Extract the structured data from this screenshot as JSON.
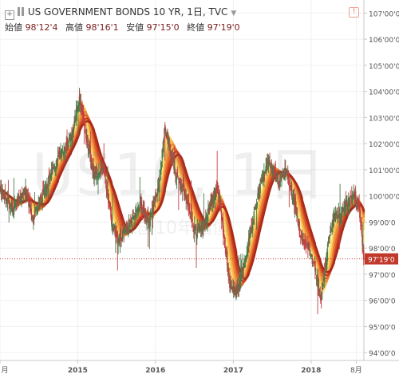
{
  "header": {
    "title": "US GOVERNMENT BONDS 10 YR, 1日, TVC",
    "ohlc": [
      {
        "label": "始値",
        "value": "98'12'4"
      },
      {
        "label": "高値",
        "value": "98'16'1"
      },
      {
        "label": "安値",
        "value": "97'15'0"
      },
      {
        "label": "終値",
        "value": "97'19'0"
      }
    ]
  },
  "watermark": {
    "main": "US10, 1日",
    "sub": "米国10年国債"
  },
  "colors": {
    "up": "#4a7a4a",
    "down": "#c04040",
    "price_line": "#c0392b",
    "ma_colors": [
      "#fff2a0",
      "#ffd966",
      "#f6b24a",
      "#ec8a3a",
      "#e0652c",
      "#cc3b22",
      "#a82a1a"
    ]
  },
  "chart_data": {
    "type": "line",
    "y_ticks": [
      "94'00'0",
      "95'00'0",
      "96'00'0",
      "97'00'0",
      "98'00'0",
      "99'00'0",
      "100'00'0",
      "101'00'0",
      "102'00'0",
      "103'00'0",
      "104'00'0",
      "105'00'0",
      "106'00'0",
      "107'00'0"
    ],
    "y_tick_values": [
      94,
      95,
      96,
      97,
      98,
      99,
      100,
      101,
      102,
      103,
      104,
      105,
      106,
      107
    ],
    "x_ticks": [
      "月",
      "2015",
      "2016",
      "2017",
      "2018",
      "8月"
    ],
    "x_tick_dates": [
      "2014-01-01",
      "2015-01-01",
      "2016-01-01",
      "2017-01-01",
      "2018-01-01",
      "2018-08-01"
    ],
    "x_range": [
      "2014-01-01",
      "2018-09-06"
    ],
    "ylim": [
      93.7,
      107.5
    ],
    "last_price": {
      "label": "97'19'0",
      "value": 97.59
    },
    "price_points": [
      {
        "date": "2014-01-01",
        "price": 100.3
      },
      {
        "date": "2014-03-01",
        "price": 99.5
      },
      {
        "date": "2014-05-01",
        "price": 100.2
      },
      {
        "date": "2014-06-01",
        "price": 99.2
      },
      {
        "date": "2014-08-01",
        "price": 100.2
      },
      {
        "date": "2014-10-01",
        "price": 101.5
      },
      {
        "date": "2014-12-01",
        "price": 102.2
      },
      {
        "date": "2015-01-10",
        "price": 103.8
      },
      {
        "date": "2015-02-10",
        "price": 102.3
      },
      {
        "date": "2015-03-20",
        "price": 100.8
      },
      {
        "date": "2015-05-01",
        "price": 101.0
      },
      {
        "date": "2015-06-10",
        "price": 99.0
      },
      {
        "date": "2015-07-10",
        "price": 98.3
      },
      {
        "date": "2015-08-20",
        "price": 98.8
      },
      {
        "date": "2015-09-20",
        "price": 99.2
      },
      {
        "date": "2015-10-20",
        "price": 99.6
      },
      {
        "date": "2015-12-01",
        "price": 99.0
      },
      {
        "date": "2016-01-15",
        "price": 100.3
      },
      {
        "date": "2016-02-15",
        "price": 102.6
      },
      {
        "date": "2016-04-01",
        "price": 101.0
      },
      {
        "date": "2016-05-15",
        "price": 100.2
      },
      {
        "date": "2016-07-08",
        "price": 98.6
      },
      {
        "date": "2016-08-15",
        "price": 98.8
      },
      {
        "date": "2016-09-20",
        "price": 99.8
      },
      {
        "date": "2016-10-20",
        "price": 100.3
      },
      {
        "date": "2016-11-15",
        "price": 98.6
      },
      {
        "date": "2016-12-15",
        "price": 96.6
      },
      {
        "date": "2017-01-15",
        "price": 96.3
      },
      {
        "date": "2017-02-15",
        "price": 97.3
      },
      {
        "date": "2017-03-15",
        "price": 98.3
      },
      {
        "date": "2017-05-01",
        "price": 100.2
      },
      {
        "date": "2017-06-15",
        "price": 101.3
      },
      {
        "date": "2017-08-01",
        "price": 100.6
      },
      {
        "date": "2017-09-08",
        "price": 101.0
      },
      {
        "date": "2017-10-20",
        "price": 99.5
      },
      {
        "date": "2017-11-20",
        "price": 98.3
      },
      {
        "date": "2017-12-20",
        "price": 98.0
      },
      {
        "date": "2018-01-20",
        "price": 97.2
      },
      {
        "date": "2018-02-15",
        "price": 96.0
      },
      {
        "date": "2018-03-20",
        "price": 98.0
      },
      {
        "date": "2018-04-20",
        "price": 99.3
      },
      {
        "date": "2018-05-20",
        "price": 99.3
      },
      {
        "date": "2018-06-20",
        "price": 99.7
      },
      {
        "date": "2018-07-20",
        "price": 100.0
      },
      {
        "date": "2018-08-15",
        "price": 99.5
      },
      {
        "date": "2018-09-06",
        "price": 97.6
      }
    ]
  }
}
